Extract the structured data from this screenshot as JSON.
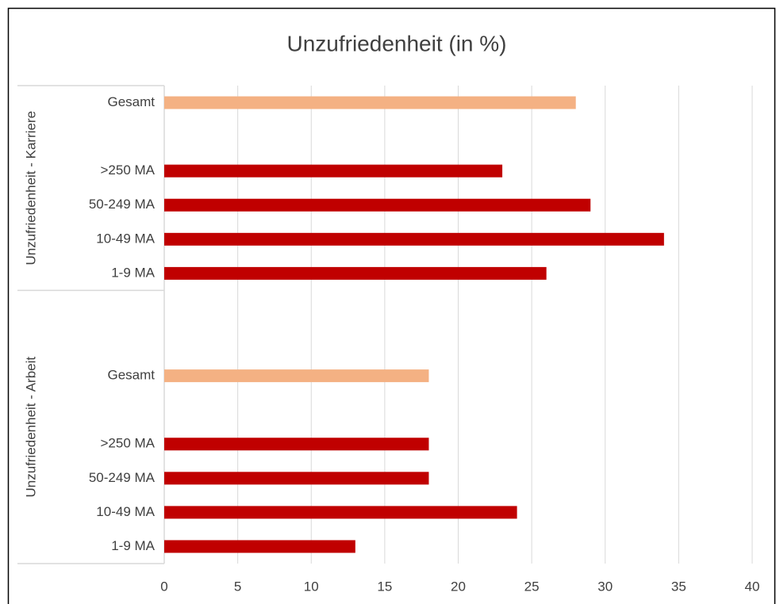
{
  "chart_data": {
    "type": "bar",
    "orientation": "horizontal",
    "title": "Unzufriedenheit (in %)",
    "groups": [
      {
        "name": "Unzufriedenheit - Karriere",
        "categories": [
          "Gesamt",
          null,
          ">250 MA",
          "50-249 MA",
          "10-49 MA",
          "1-9 MA"
        ],
        "values": [
          28,
          null,
          23,
          29,
          34,
          26
        ],
        "colors": [
          "#f4b183",
          null,
          "#c00000",
          "#c00000",
          "#c00000",
          "#c00000"
        ]
      },
      {
        "name": "Unzufriedenheit - Arbeit",
        "categories": [
          null,
          null,
          "Gesamt",
          null,
          ">250 MA",
          "50-249 MA",
          "10-49 MA",
          "1-9 MA"
        ],
        "values": [
          null,
          null,
          18,
          null,
          18,
          18,
          24,
          13
        ],
        "colors": [
          null,
          null,
          "#f4b183",
          null,
          "#c00000",
          "#c00000",
          "#c00000",
          "#c00000"
        ]
      }
    ],
    "xlim": [
      0,
      40
    ],
    "xticks": [
      0,
      5,
      10,
      15,
      20,
      25,
      30,
      35,
      40
    ],
    "grid": true
  }
}
